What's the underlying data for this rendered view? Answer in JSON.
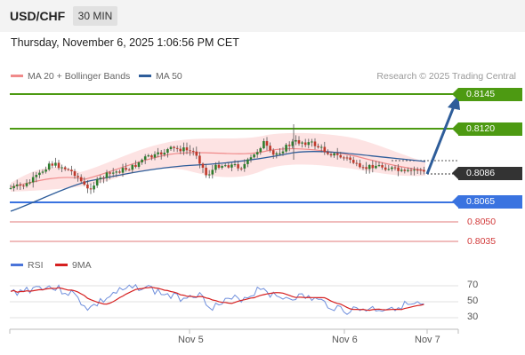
{
  "header": {
    "symbol": "USD/CHF",
    "timeframe": "30 MIN"
  },
  "datetime": "Thursday, November 6, 2025 1:06:56 PM CET",
  "legend": [
    {
      "label": "MA 20 + Bollinger Bands",
      "color": "#f08a8a"
    },
    {
      "label": "MA 50",
      "color": "#2e5d9a"
    }
  ],
  "credit": "Research © 2025 Trading Central",
  "levels": [
    {
      "value": "0.8145",
      "kind": "resistance",
      "color": "#4d9a12"
    },
    {
      "value": "0.8120",
      "kind": "resistance",
      "color": "#4d9a12"
    },
    {
      "value": "0.8086",
      "kind": "current",
      "color": "#333333"
    },
    {
      "value": "0.8065",
      "kind": "pivot",
      "color": "#3a73e0"
    },
    {
      "value": "0.8050",
      "kind": "support",
      "color": "#d23a3a"
    },
    {
      "value": "0.8035",
      "kind": "support",
      "color": "#d23a3a"
    }
  ],
  "rsi_legend": [
    {
      "label": "RSI",
      "color": "#4a74d9"
    },
    {
      "label": "9MA",
      "color": "#d62020"
    }
  ],
  "rsi_ticks": [
    "70",
    "50",
    "30"
  ],
  "x_ticks": [
    "Nov 5",
    "Nov 6",
    "Nov 7"
  ]
}
